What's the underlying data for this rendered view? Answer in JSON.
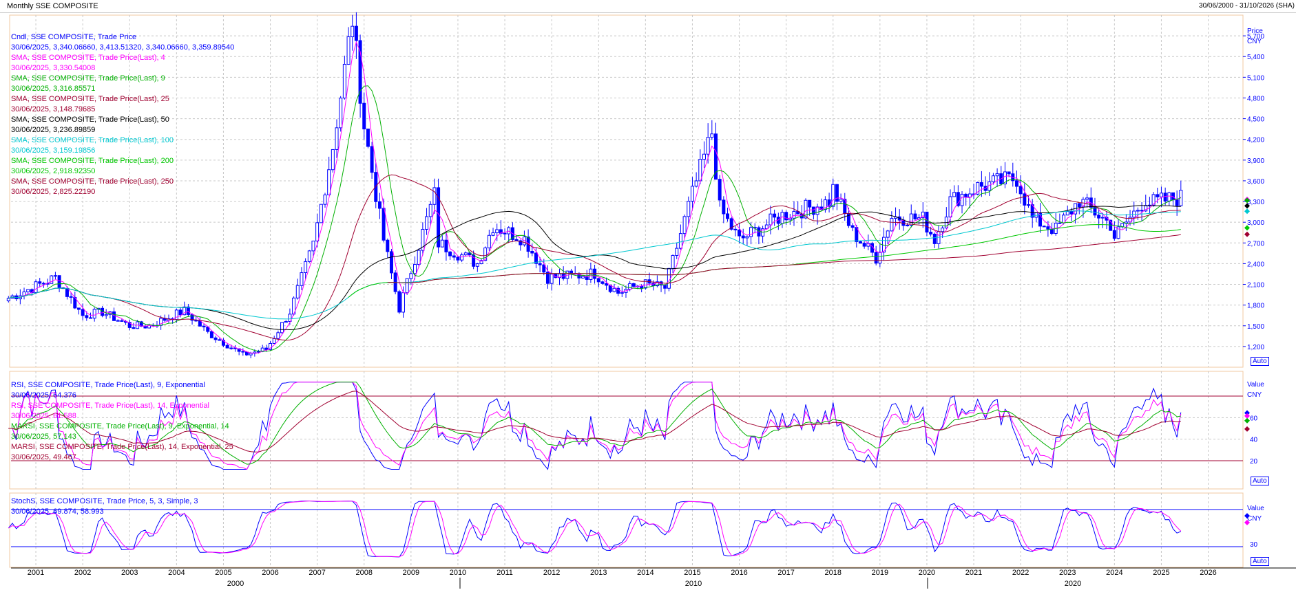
{
  "window": {
    "title": "Monthly SSE COMPOSITE",
    "date_range": "30/06/2000 - 31/10/2026 (SHA)"
  },
  "auto_label": "Auto",
  "colors": {
    "candle": "#0000ff",
    "sma4": "#ff00ff",
    "sma9": "#00b000",
    "sma25": "#a00030",
    "sma50": "#000000",
    "sma100": "#00c8d0",
    "sma200": "#00c800",
    "sma250": "#a00030",
    "band": "#a00030",
    "stoch_band": "#0000ff",
    "panel_border": "#f0c8a0",
    "grid": "#c8c8c8",
    "axis_text": "#0000ff"
  },
  "price_panel": {
    "axis_title": "Price",
    "axis_unit": "CNY",
    "legend": [
      {
        "label": "Cndl, SSE COMPOSITE, Trade Price",
        "value": "30/06/2025, 3,340.06660, 3,413.51320, 3,340.06660, 3,359.89540",
        "color": "#0000ff"
      },
      {
        "label": "SMA, SSE COMPOSITE, Trade Price(Last),  4",
        "value": "30/06/2025, 3,330.54008",
        "color": "#ff00ff"
      },
      {
        "label": "SMA, SSE COMPOSITE, Trade Price(Last),  9",
        "value": "30/06/2025, 3,316.85571",
        "color": "#00b000"
      },
      {
        "label": "SMA, SSE COMPOSITE, Trade Price(Last),  25",
        "value": "30/06/2025, 3,148.79685",
        "color": "#a00030"
      },
      {
        "label": "SMA, SSE COMPOSITE, Trade Price(Last),  50",
        "value": "30/06/2025, 3,236.89859",
        "color": "#000000"
      },
      {
        "label": "SMA, SSE COMPOSITE, Trade Price(Last),  100",
        "value": "30/06/2025, 3,159.19856",
        "color": "#00c8d0"
      },
      {
        "label": "SMA, SSE COMPOSITE, Trade Price(Last),  200",
        "value": "30/06/2025, 2,918.92350",
        "color": "#00c800"
      },
      {
        "label": "SMA, SSE COMPOSITE, Trade Price(Last),  250",
        "value": "30/06/2025, 2,825.22190",
        "color": "#a00030"
      }
    ],
    "y_ticks": [
      "1,200",
      "1,500",
      "1,800",
      "2,100",
      "2,400",
      "2,700",
      "3,000",
      "3,300",
      "3,600",
      "3,900",
      "4,200",
      "4,500",
      "4,800",
      "5,100",
      "5,400",
      "5,700"
    ]
  },
  "rsi_panel": {
    "axis_title": "Value",
    "axis_unit": "CNY",
    "legend": [
      {
        "label": "RSI, SSE COMPOSITE, Trade Price(Last),  9, Exponential",
        "value": "30/06/2025, 64.376",
        "color": "#0000ff"
      },
      {
        "label": "RSI, SSE COMPOSITE, Trade Price(Last),  14, Exponential",
        "value": "30/06/2025, 61.588",
        "color": "#ff00ff"
      },
      {
        "label": "MARSI, SSE COMPOSITE, Trade Price(Last),  9, Exponential, 14",
        "value": "30/06/2025, 57.143",
        "color": "#00b000"
      },
      {
        "label": "MARSI, SSE COMPOSITE, Trade Price(Last),  14, Exponential, 25",
        "value": "30/06/2025, 49.467",
        "color": "#a00030"
      }
    ],
    "y_ticks": [
      "20",
      "40",
      "60"
    ],
    "bands": [
      20,
      80
    ]
  },
  "stoch_panel": {
    "axis_title": "Value",
    "axis_unit": "CNY",
    "legend": [
      {
        "label": "StochS, SSE COMPOSITE, Trade Price,  5, 3, Simple, 3",
        "value": "30/06/2025, 69.874, 58.993",
        "color": "#0000ff"
      }
    ],
    "y_ticks": [
      "30"
    ],
    "bands": [
      20,
      80
    ]
  },
  "x_axis": {
    "years": [
      "2001",
      "2002",
      "2003",
      "2004",
      "2005",
      "2006",
      "2007",
      "2008",
      "2009",
      "2010",
      "2011",
      "2012",
      "2013",
      "2014",
      "2015",
      "2016",
      "2017",
      "2018",
      "2019",
      "2020",
      "2021",
      "2022",
      "2023",
      "2024",
      "2025",
      "2026"
    ],
    "decades": [
      "2000",
      "2010",
      "2020"
    ]
  },
  "chart_data": {
    "type": "candlestick",
    "title": "Monthly SSE COMPOSITE",
    "period": "30/06/2000 - 31/10/2026",
    "ylabel": "Price CNY",
    "ylim": [
      900,
      6000
    ],
    "price_anchors": [
      [
        "2000-06",
        1900
      ],
      [
        "2001-06",
        2200
      ],
      [
        "2002-01",
        1650
      ],
      [
        "2002-06",
        1700
      ],
      [
        "2003-01",
        1500
      ],
      [
        "2003-06",
        1500
      ],
      [
        "2004-03",
        1720
      ],
      [
        "2004-09",
        1400
      ],
      [
        "2005-06",
        1080
      ],
      [
        "2005-12",
        1160
      ],
      [
        "2006-06",
        1700
      ],
      [
        "2006-12",
        2675
      ],
      [
        "2007-05",
        4100
      ],
      [
        "2007-10",
        5950
      ],
      [
        "2008-01",
        4400
      ],
      [
        "2008-06",
        2750
      ],
      [
        "2008-10",
        1750
      ],
      [
        "2009-07",
        3400
      ],
      [
        "2009-08",
        2700
      ],
      [
        "2010-06",
        2400
      ],
      [
        "2010-10",
        2950
      ],
      [
        "2011-06",
        2760
      ],
      [
        "2011-12",
        2200
      ],
      [
        "2012-06",
        2220
      ],
      [
        "2012-12",
        2260
      ],
      [
        "2013-06",
        1980
      ],
      [
        "2013-12",
        2110
      ],
      [
        "2014-06",
        2050
      ],
      [
        "2014-12",
        3230
      ],
      [
        "2015-06",
        4300
      ],
      [
        "2015-08",
        3200
      ],
      [
        "2016-01",
        2740
      ],
      [
        "2016-12",
        3100
      ],
      [
        "2017-12",
        3300
      ],
      [
        "2018-01",
        3480
      ],
      [
        "2018-06",
        2850
      ],
      [
        "2018-12",
        2490
      ],
      [
        "2019-04",
        3080
      ],
      [
        "2019-12",
        3050
      ],
      [
        "2020-03",
        2750
      ],
      [
        "2020-07",
        3310
      ],
      [
        "2021-02",
        3510
      ],
      [
        "2021-12",
        3640
      ],
      [
        "2022-04",
        3050
      ],
      [
        "2022-10",
        2890
      ],
      [
        "2023-04",
        3320
      ],
      [
        "2023-12",
        2970
      ],
      [
        "2024-01",
        2790
      ],
      [
        "2024-09",
        3340
      ],
      [
        "2024-10",
        3280
      ],
      [
        "2025-06",
        3360
      ]
    ],
    "sma_last": {
      "4": 3330.54,
      "9": 3316.86,
      "25": 3148.8,
      "50": 3236.9,
      "100": 3159.2,
      "200": 2918.92,
      "250": 2825.22
    },
    "rsi_last": {
      "rsi9": 64.376,
      "rsi14": 61.588,
      "marsi9": 57.143,
      "marsi14": 49.467
    },
    "stoch_last": {
      "k": 69.874,
      "d": 58.993
    }
  }
}
